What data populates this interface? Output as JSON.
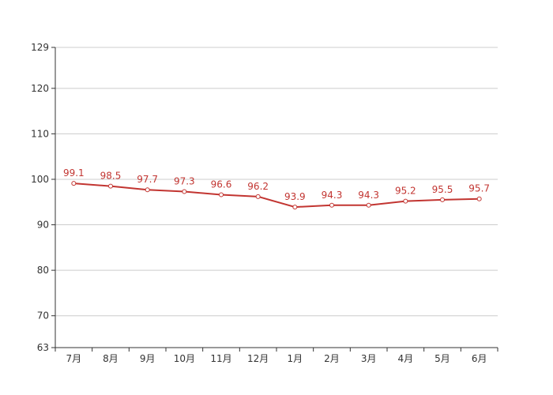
{
  "chart_data": {
    "type": "line",
    "categories": [
      "7月",
      "8月",
      "9月",
      "10月",
      "11月",
      "12月",
      "1月",
      "2月",
      "3月",
      "4月",
      "5月",
      "6月"
    ],
    "series": [
      {
        "values": [
          99.1,
          98.5,
          97.7,
          97.3,
          96.6,
          96.2,
          93.9,
          94.3,
          94.3,
          95.2,
          95.5,
          95.7
        ],
        "color": "#c23531"
      }
    ],
    "y_ticks": [
      63,
      70,
      80,
      90,
      100,
      110,
      120,
      129
    ],
    "ylim": [
      63,
      129
    ],
    "grid": true,
    "data_labels": true
  }
}
